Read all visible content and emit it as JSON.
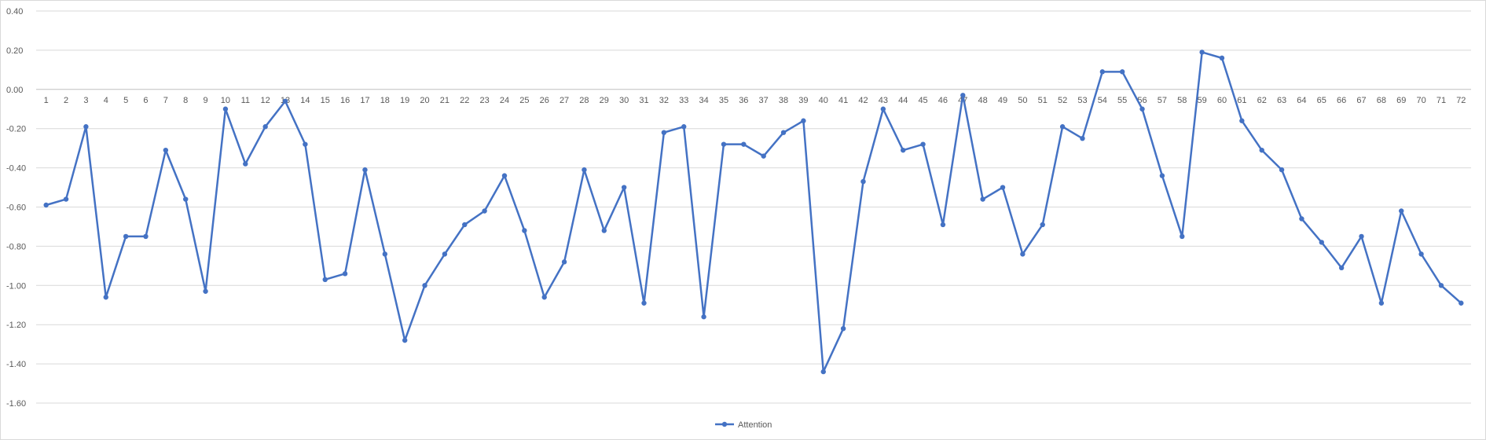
{
  "chart_data": {
    "type": "line",
    "categories": [
      "1",
      "2",
      "3",
      "4",
      "5",
      "6",
      "7",
      "8",
      "9",
      "10",
      "11",
      "12",
      "13",
      "14",
      "15",
      "16",
      "17",
      "18",
      "19",
      "20",
      "21",
      "22",
      "23",
      "24",
      "25",
      "26",
      "27",
      "28",
      "29",
      "30",
      "31",
      "32",
      "33",
      "34",
      "35",
      "36",
      "37",
      "38",
      "39",
      "40",
      "41",
      "42",
      "43",
      "44",
      "45",
      "46",
      "47",
      "48",
      "49",
      "50",
      "51",
      "52",
      "53",
      "54",
      "55",
      "56",
      "57",
      "58",
      "59",
      "60",
      "61",
      "62",
      "63",
      "64",
      "65",
      "66",
      "67",
      "68",
      "69",
      "70",
      "71",
      "72"
    ],
    "series": [
      {
        "name": "Attention",
        "color": "#4472C4",
        "values": [
          -0.59,
          -0.56,
          -0.19,
          -1.06,
          -0.75,
          -0.75,
          -0.31,
          -0.56,
          -1.03,
          -0.1,
          -0.38,
          -0.19,
          -0.06,
          -0.28,
          -0.97,
          -0.94,
          -0.41,
          -0.84,
          -1.28,
          -1.0,
          -0.84,
          -0.69,
          -0.62,
          -0.44,
          -0.72,
          -1.06,
          -0.88,
          -0.41,
          -0.72,
          -0.5,
          -1.09,
          -0.22,
          -0.19,
          -1.16,
          -0.28,
          -0.28,
          -0.34,
          -0.22,
          -0.16,
          -1.44,
          -1.22,
          -0.47,
          -0.1,
          -0.31,
          -0.28,
          -0.69,
          -0.03,
          -0.56,
          -0.5,
          -0.84,
          -0.69,
          -0.19,
          -0.25,
          0.09,
          0.09,
          -0.1,
          -0.44,
          -0.75,
          0.19,
          0.16,
          -0.16,
          -0.31,
          -0.41,
          -0.66,
          -0.78,
          -0.91,
          -0.75,
          -1.09,
          -0.62,
          -0.84,
          -1.0,
          -1.09
        ]
      }
    ],
    "y_ticks": [
      "0.40",
      "0.20",
      "0.00",
      "-0.20",
      "-0.40",
      "-0.60",
      "-0.80",
      "-1.00",
      "-1.20",
      "-1.40",
      "-1.60"
    ],
    "ylim": [
      -1.6,
      0.4
    ],
    "grid": true,
    "legend_position": "bottom"
  }
}
